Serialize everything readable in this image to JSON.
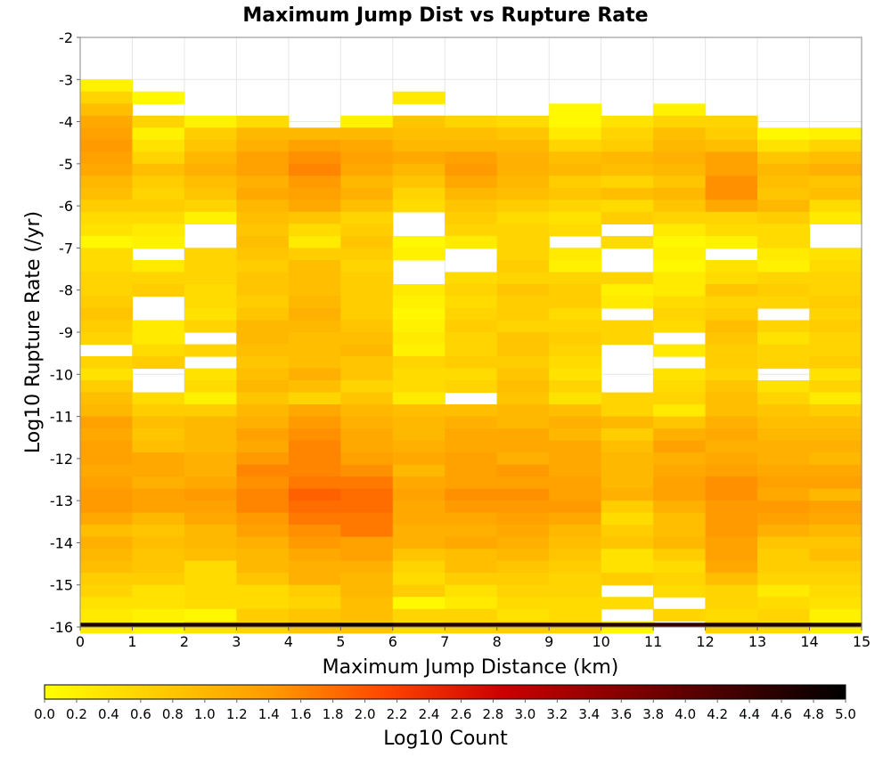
{
  "chart_data": {
    "type": "heatmap",
    "title": "Maximum Jump Dist vs Rupture Rate",
    "xlabel": "Maximum Jump Distance (km)",
    "ylabel": "Log10 Rupture Rate (/yr)",
    "xlim": [
      0,
      15
    ],
    "ylim": [
      -16,
      -2
    ],
    "x_ticks": [
      "0",
      "1",
      "2",
      "3",
      "4",
      "5",
      "6",
      "7",
      "8",
      "9",
      "10",
      "11",
      "12",
      "13",
      "14",
      "15"
    ],
    "y_ticks": [
      "-2",
      "-3",
      "-4",
      "-5",
      "-6",
      "-7",
      "-8",
      "-9",
      "-10",
      "-11",
      "-12",
      "-13",
      "-14",
      "-15",
      "-16"
    ],
    "colorbar": {
      "label": "Log10 Count",
      "range": [
        0,
        5
      ],
      "ticks": [
        "0.0",
        "0.2",
        "0.4",
        "0.6",
        "0.8",
        "1.0",
        "1.2",
        "1.4",
        "1.6",
        "1.8",
        "2.0",
        "2.2",
        "2.4",
        "2.6",
        "2.8",
        "3.0",
        "3.2",
        "3.4",
        "3.6",
        "3.8",
        "4.0",
        "4.2",
        "4.4",
        "4.6",
        "4.8",
        "5.0"
      ],
      "colors": [
        "#ffff00",
        "#ffcc00",
        "#ff9900",
        "#ff4400",
        "#cc0000",
        "#880000",
        "#440000",
        "#000000"
      ]
    },
    "grid": true,
    "bin_width_x": 1,
    "bin_height_y": 0.2857,
    "y_bin_tops": [
      -3.0,
      -3.2857,
      -3.5714,
      -3.8571,
      -4.1429,
      -4.4286,
      -4.7143,
      -5.0,
      -5.2857,
      -5.5714,
      -5.8571,
      -6.1429,
      -6.4286,
      -6.7143,
      -7.0,
      -7.2857,
      -7.5714,
      -7.8571,
      -8.1429,
      -8.4286,
      -8.7143,
      -9.0,
      -9.2857,
      -9.5714,
      -9.8571,
      -10.1429,
      -10.4286,
      -10.7143,
      -11.0,
      -11.2857,
      -11.5714,
      -11.8571,
      -12.1429,
      -12.4286,
      -12.7143,
      -13.0,
      -13.2857,
      -13.5714,
      -13.8571,
      -14.1429,
      -14.4286,
      -14.7143,
      -15.0,
      -15.2857,
      -15.5714,
      -15.8571
    ],
    "values": [
      [
        0.2,
        null,
        null,
        null,
        null,
        null,
        null,
        null,
        null,
        null,
        null,
        null,
        null,
        null,
        null
      ],
      [
        0.6,
        0.1,
        null,
        null,
        null,
        null,
        0.3,
        null,
        null,
        null,
        null,
        null,
        null,
        null,
        null
      ],
      [
        0.9,
        null,
        null,
        null,
        null,
        null,
        null,
        null,
        null,
        0.1,
        null,
        0.2,
        null,
        null,
        null
      ],
      [
        1.2,
        0.6,
        0.2,
        0.5,
        null,
        0.2,
        0.8,
        0.6,
        0.5,
        0.1,
        0.4,
        0.6,
        0.6,
        null,
        null
      ],
      [
        1.3,
        0.2,
        0.7,
        1.0,
        1.0,
        1.0,
        0.9,
        0.9,
        0.8,
        0.3,
        0.6,
        0.9,
        0.7,
        0.1,
        0.2
      ],
      [
        1.4,
        0.4,
        0.8,
        1.1,
        1.3,
        1.2,
        1.0,
        1.0,
        1.0,
        0.6,
        0.7,
        1.0,
        0.9,
        0.4,
        0.6
      ],
      [
        1.3,
        0.6,
        1.0,
        1.3,
        1.5,
        1.3,
        1.2,
        1.3,
        1.1,
        0.9,
        1.0,
        1.1,
        1.3,
        0.8,
        0.9
      ],
      [
        1.2,
        0.9,
        1.1,
        1.3,
        1.6,
        1.2,
        1.0,
        1.4,
        1.1,
        1.0,
        0.9,
        1.0,
        1.3,
        1.0,
        1.1
      ],
      [
        1.0,
        0.7,
        0.9,
        1.1,
        1.4,
        1.0,
        0.8,
        1.2,
        1.0,
        0.7,
        0.6,
        0.8,
        1.5,
        0.9,
        0.8
      ],
      [
        0.9,
        0.6,
        0.8,
        1.2,
        1.3,
        1.1,
        0.6,
        1.0,
        0.9,
        0.8,
        0.9,
        1.0,
        1.5,
        0.8,
        0.9
      ],
      [
        0.7,
        0.7,
        0.6,
        1.0,
        1.2,
        0.9,
        0.5,
        0.8,
        0.7,
        0.6,
        0.5,
        0.8,
        1.2,
        1.0,
        0.5
      ],
      [
        0.5,
        0.5,
        0.2,
        0.9,
        0.8,
        0.6,
        null,
        0.7,
        0.5,
        0.4,
        0.7,
        0.6,
        0.6,
        0.7,
        0.3
      ],
      [
        0.4,
        0.3,
        null,
        0.8,
        0.5,
        0.7,
        null,
        0.6,
        0.6,
        0.5,
        null,
        0.3,
        0.5,
        0.5,
        null
      ],
      [
        0.1,
        0.2,
        null,
        0.9,
        0.3,
        0.8,
        0.1,
        0.3,
        0.6,
        null,
        0.5,
        0.1,
        0.2,
        0.5,
        null
      ],
      [
        0.5,
        null,
        0.6,
        0.8,
        0.7,
        0.7,
        0.2,
        null,
        0.6,
        0.3,
        null,
        0.2,
        null,
        0.3,
        0.4
      ],
      [
        0.5,
        0.3,
        0.6,
        0.7,
        0.9,
        0.6,
        null,
        null,
        0.7,
        0.2,
        null,
        0.1,
        0.4,
        0.2,
        0.5
      ],
      [
        0.6,
        0.6,
        0.6,
        0.8,
        0.9,
        0.7,
        null,
        0.5,
        0.6,
        0.6,
        0.6,
        0.3,
        0.5,
        0.6,
        0.6
      ],
      [
        0.6,
        0.7,
        0.5,
        0.8,
        0.9,
        0.7,
        0.3,
        0.6,
        0.8,
        0.7,
        0.2,
        0.3,
        0.8,
        0.7,
        0.6
      ],
      [
        0.7,
        null,
        0.5,
        0.7,
        1.0,
        0.7,
        0.2,
        0.5,
        0.7,
        0.7,
        0.3,
        0.5,
        0.6,
        0.6,
        0.7
      ],
      [
        0.8,
        null,
        0.4,
        0.8,
        1.1,
        0.7,
        0.1,
        0.6,
        0.7,
        0.5,
        null,
        0.6,
        0.7,
        null,
        0.6
      ],
      [
        0.7,
        0.3,
        0.6,
        1.0,
        1.0,
        0.8,
        0.2,
        0.7,
        0.6,
        0.6,
        0.6,
        0.5,
        0.9,
        0.6,
        0.7
      ],
      [
        0.6,
        0.3,
        null,
        1.0,
        0.9,
        0.9,
        0.3,
        0.6,
        0.8,
        0.7,
        0.6,
        null,
        0.8,
        0.4,
        0.6
      ],
      [
        null,
        0.5,
        0.6,
        0.9,
        0.9,
        1.0,
        0.2,
        0.6,
        0.8,
        0.6,
        null,
        0.3,
        0.7,
        0.6,
        0.6
      ],
      [
        0.6,
        0.7,
        null,
        0.8,
        0.9,
        0.8,
        0.6,
        0.7,
        0.7,
        0.5,
        null,
        null,
        0.7,
        0.6,
        0.7
      ],
      [
        0.4,
        null,
        0.4,
        0.9,
        1.1,
        0.8,
        0.5,
        0.5,
        0.8,
        0.4,
        null,
        0.4,
        0.6,
        null,
        0.4
      ],
      [
        0.7,
        null,
        0.5,
        1.0,
        0.9,
        0.6,
        0.5,
        0.6,
        0.9,
        0.6,
        null,
        0.5,
        0.8,
        0.4,
        0.6
      ],
      [
        0.9,
        0.5,
        0.2,
        0.8,
        0.6,
        0.8,
        0.3,
        null,
        0.8,
        0.4,
        0.6,
        0.6,
        0.9,
        0.6,
        0.3
      ],
      [
        1.0,
        0.7,
        0.7,
        1.0,
        1.2,
        1.0,
        0.9,
        0.9,
        1.0,
        0.9,
        0.6,
        0.3,
        0.9,
        0.8,
        0.7
      ],
      [
        1.3,
        0.9,
        1.0,
        1.1,
        1.4,
        1.1,
        1.0,
        1.1,
        1.0,
        1.1,
        1.0,
        0.8,
        1.1,
        0.9,
        0.9
      ],
      [
        1.2,
        0.8,
        1.0,
        1.3,
        1.5,
        1.2,
        1.0,
        1.2,
        1.2,
        1.0,
        0.7,
        1.1,
        1.2,
        1.0,
        1.0
      ],
      [
        1.3,
        0.9,
        1.0,
        1.2,
        1.6,
        1.2,
        1.1,
        1.2,
        1.2,
        1.2,
        0.9,
        1.3,
        1.1,
        1.1,
        1.1
      ],
      [
        1.3,
        1.2,
        1.1,
        1.4,
        1.6,
        1.3,
        1.2,
        1.3,
        1.1,
        1.2,
        1.0,
        1.1,
        1.2,
        1.1,
        1.0
      ],
      [
        1.2,
        1.2,
        1.1,
        1.6,
        1.6,
        1.5,
        1.0,
        1.3,
        1.4,
        1.2,
        1.0,
        1.2,
        1.3,
        1.2,
        1.2
      ],
      [
        1.3,
        1.1,
        1.2,
        1.5,
        1.7,
        1.7,
        1.2,
        1.3,
        1.3,
        1.3,
        1.0,
        1.3,
        1.5,
        1.3,
        1.3
      ],
      [
        1.4,
        1.3,
        1.4,
        1.6,
        1.9,
        1.8,
        1.3,
        1.5,
        1.5,
        1.3,
        1.1,
        1.3,
        1.5,
        1.2,
        1.0
      ],
      [
        1.4,
        1.3,
        1.3,
        1.6,
        1.8,
        1.8,
        1.2,
        1.4,
        1.4,
        1.4,
        0.7,
        1.1,
        1.4,
        1.4,
        1.3
      ],
      [
        1.2,
        1.0,
        1.2,
        1.4,
        1.7,
        1.7,
        1.2,
        1.2,
        1.3,
        1.2,
        0.5,
        0.9,
        1.4,
        1.3,
        1.2
      ],
      [
        0.9,
        0.8,
        1.0,
        1.3,
        1.5,
        1.7,
        1.1,
        1.1,
        1.2,
        1.0,
        0.7,
        0.9,
        1.4,
        1.1,
        1.0
      ],
      [
        1.1,
        0.9,
        1.0,
        1.1,
        1.4,
        1.3,
        1.1,
        1.2,
        1.1,
        0.9,
        0.8,
        1.0,
        1.3,
        0.8,
        0.8
      ],
      [
        1.0,
        0.8,
        0.9,
        1.0,
        1.2,
        1.3,
        0.8,
        0.9,
        1.0,
        0.8,
        0.4,
        0.7,
        1.3,
        0.7,
        0.9
      ],
      [
        0.9,
        0.8,
        0.5,
        1.0,
        1.1,
        1.1,
        0.6,
        0.9,
        0.8,
        0.7,
        0.4,
        0.5,
        1.2,
        0.7,
        0.7
      ],
      [
        0.7,
        0.7,
        0.5,
        0.8,
        1.1,
        1.0,
        0.5,
        0.7,
        0.7,
        0.6,
        0.7,
        0.6,
        0.9,
        0.6,
        0.6
      ],
      [
        0.6,
        0.4,
        0.5,
        0.5,
        0.7,
        1.0,
        0.7,
        0.4,
        0.6,
        0.6,
        null,
        0.5,
        0.6,
        0.3,
        0.5
      ],
      [
        0.4,
        0.4,
        0.5,
        0.5,
        0.6,
        0.9,
        0.1,
        0.3,
        0.5,
        0.5,
        0.5,
        null,
        0.6,
        0.5,
        0.4
      ],
      [
        0.3,
        0.2,
        0.1,
        0.7,
        0.8,
        0.9,
        0.6,
        0.6,
        0.4,
        0.5,
        null,
        0.6,
        0.5,
        0.6,
        0.2
      ],
      [
        0.3,
        0.1,
        0.4,
        0.6,
        0.8,
        0.8,
        0.5,
        0.6,
        0.7,
        0.6,
        0.1,
        null,
        0.6,
        0.5,
        0.2
      ]
    ],
    "bottom_row_values": [
      4.7,
      4.7,
      4.7,
      4.7,
      4.8,
      4.9,
      4.6,
      4.6,
      4.6,
      4.6,
      4.6,
      4.5,
      4.7,
      4.7,
      4.7
    ]
  }
}
